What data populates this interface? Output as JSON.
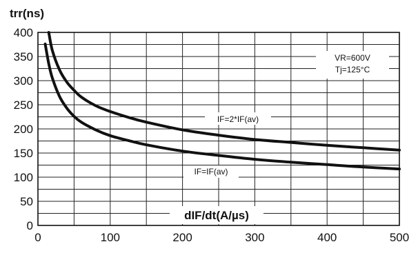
{
  "chart_data": {
    "type": "line",
    "ylabel": "trr(ns)",
    "xlabel": "dIF/dt(A/µs)",
    "xlim": [
      0,
      500
    ],
    "ylim": [
      0,
      400
    ],
    "x_ticks": [
      "0",
      "100",
      "200",
      "300",
      "400",
      "500"
    ],
    "y_ticks": [
      "0",
      "50",
      "100",
      "150",
      "200",
      "250",
      "300",
      "350",
      "400"
    ],
    "x_minor_step": 50,
    "y_minor_step": 25,
    "grid": true,
    "conditions": [
      "VR=600V",
      "Tj=125°C"
    ],
    "series": [
      {
        "name": "IF=2*IF(av)",
        "x": [
          15,
          20,
          30,
          40,
          50,
          60,
          80,
          100,
          125,
          150,
          200,
          250,
          300,
          350,
          400,
          450,
          500
        ],
        "y": [
          400,
          362,
          322,
          297,
          280,
          266,
          248,
          236,
          224,
          214,
          198,
          187,
          178,
          172,
          166,
          161,
          156
        ]
      },
      {
        "name": "IF=IF(av)",
        "x": [
          10,
          15,
          20,
          30,
          40,
          50,
          60,
          80,
          100,
          125,
          150,
          200,
          250,
          300,
          350,
          400,
          450,
          500
        ],
        "y": [
          376,
          335,
          305,
          267,
          243,
          226,
          214,
          198,
          186,
          176,
          167,
          154,
          145,
          137,
          131,
          126,
          121,
          117
        ]
      }
    ]
  }
}
